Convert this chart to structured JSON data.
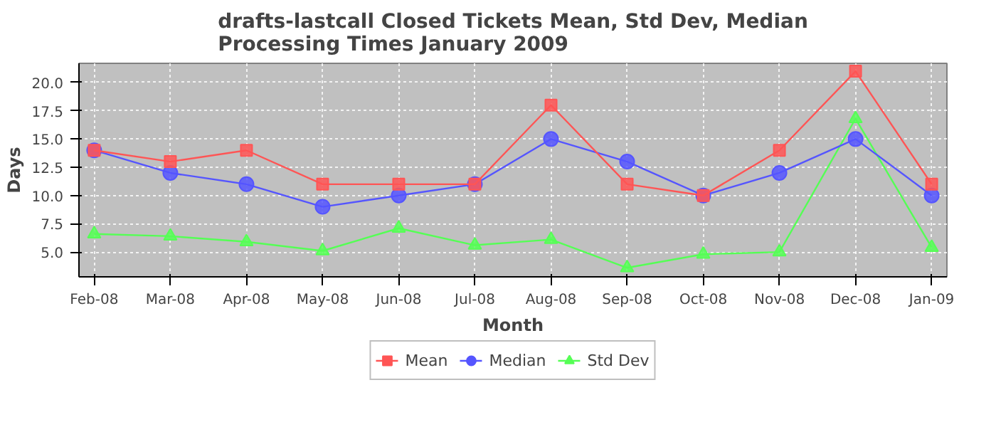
{
  "chart_data": {
    "type": "line",
    "title": "drafts-lastcall Closed Tickets Mean, Std Dev, Median Processing Times January 2009",
    "xlabel": "Month",
    "ylabel": "Days",
    "categories": [
      "Feb-08",
      "Mar-08",
      "Apr-08",
      "May-08",
      "Jun-08",
      "Jul-08",
      "Aug-08",
      "Sep-08",
      "Oct-08",
      "Nov-08",
      "Dec-08",
      "Jan-09"
    ],
    "series": [
      {
        "name": "Mean",
        "color": "#ff5555",
        "marker": "square",
        "values": [
          14,
          13,
          14,
          11,
          11,
          11,
          18,
          11,
          10,
          14,
          21,
          11
        ]
      },
      {
        "name": "Median",
        "color": "#5555ff",
        "marker": "circle",
        "values": [
          14,
          12,
          11,
          9,
          10,
          11,
          15,
          13,
          10,
          12,
          15,
          10
        ]
      },
      {
        "name": "Std Dev",
        "color": "#55ff55",
        "marker": "triangle",
        "values": [
          6.6,
          6.4,
          5.9,
          5.1,
          7.1,
          5.6,
          6.1,
          3.6,
          4.8,
          5.0,
          16.8,
          5.4
        ]
      }
    ],
    "ylim": [
      2.8,
      21.7
    ],
    "yticks": [
      {
        "value": 5,
        "label": "5.0"
      },
      {
        "value": 7.5,
        "label": "7.5"
      },
      {
        "value": 10,
        "label": "10.0"
      },
      {
        "value": 12.5,
        "label": "12.5"
      },
      {
        "value": 15,
        "label": "15.0"
      },
      {
        "value": 17.5,
        "label": "17.5"
      },
      {
        "value": 20,
        "label": "20.0"
      }
    ],
    "grid": true,
    "legend": "bottom",
    "line_style": "solid"
  }
}
